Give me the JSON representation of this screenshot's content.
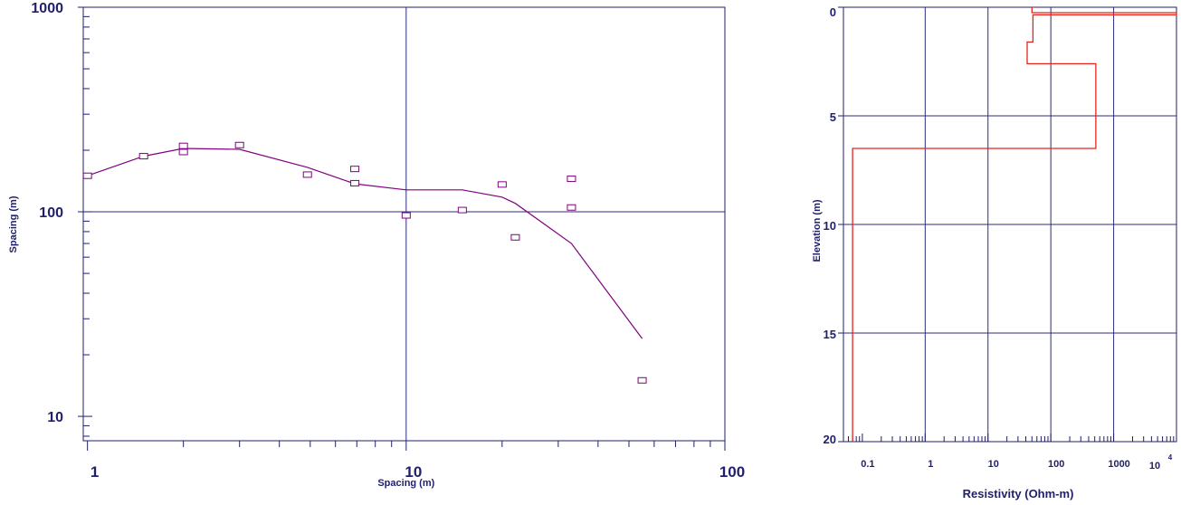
{
  "chart_data": [
    {
      "type": "scatter",
      "xlabel": "Spacing (m)",
      "ylabel": "Spacing (m)",
      "xscale": "log",
      "yscale": "log",
      "xlim": [
        0.97,
        100
      ],
      "ylim": [
        7.6,
        1000
      ],
      "x_ticks": [
        {
          "value": 1,
          "label": "1"
        },
        {
          "value": 10,
          "label": "10"
        },
        {
          "value": 100,
          "label": "100"
        }
      ],
      "y_ticks": [
        {
          "value": 10,
          "label": "10"
        },
        {
          "value": 100,
          "label": "100"
        },
        {
          "value": 1000,
          "label": "1000"
        }
      ],
      "observed": [
        {
          "x": 1.0,
          "y": 150
        },
        {
          "x": 1.5,
          "y": 187
        },
        {
          "x": 2.0,
          "y": 210
        },
        {
          "x": 2.0,
          "y": 196
        },
        {
          "x": 3.0,
          "y": 212
        },
        {
          "x": 4.9,
          "y": 152
        },
        {
          "x": 6.9,
          "y": 162
        },
        {
          "x": 6.9,
          "y": 138
        },
        {
          "x": 10.0,
          "y": 96
        },
        {
          "x": 15.0,
          "y": 102
        },
        {
          "x": 20.0,
          "y": 136
        },
        {
          "x": 22.0,
          "y": 75
        },
        {
          "x": 33.0,
          "y": 145
        },
        {
          "x": 33.0,
          "y": 105
        },
        {
          "x": 55.0,
          "y": 15
        }
      ],
      "calculated": [
        {
          "x": 1.0,
          "y": 150
        },
        {
          "x": 1.5,
          "y": 187
        },
        {
          "x": 2.0,
          "y": 204
        },
        {
          "x": 3.0,
          "y": 202
        },
        {
          "x": 4.9,
          "y": 165
        },
        {
          "x": 6.9,
          "y": 137
        },
        {
          "x": 10.0,
          "y": 128
        },
        {
          "x": 15.0,
          "y": 128
        },
        {
          "x": 20.0,
          "y": 118
        },
        {
          "x": 22.0,
          "y": 110
        },
        {
          "x": 33.0,
          "y": 70
        },
        {
          "x": 55.0,
          "y": 24
        }
      ],
      "grid": true,
      "colors": {
        "axis": "#1f1f6b",
        "grid": "#2b2b80",
        "data": "#800080"
      }
    },
    {
      "type": "line",
      "xlabel": "Resistivity (Ohm-m)",
      "ylabel": "Elevation (m)",
      "xscale": "log",
      "xlim": [
        0.05,
        10000
      ],
      "ylim": [
        20,
        0
      ],
      "x_ticks": [
        {
          "value": 0.1,
          "label": "0.1"
        },
        {
          "value": 1,
          "label": "1"
        },
        {
          "value": 10,
          "label": "10"
        },
        {
          "value": 100,
          "label": "100"
        },
        {
          "value": 1000,
          "label": "1000"
        }
      ],
      "x_tick_last": {
        "value": 10000,
        "base": "10",
        "exp": "4"
      },
      "y_ticks": [
        {
          "value": 0,
          "label": "0"
        },
        {
          "value": 5,
          "label": "5"
        },
        {
          "value": 10,
          "label": "10"
        },
        {
          "value": 15,
          "label": "15"
        },
        {
          "value": 20,
          "label": "20"
        }
      ],
      "model_layers": [
        {
          "resistivity": 50,
          "top": 0,
          "bottom": 0.25
        },
        {
          "resistivity": 10000,
          "top": 0.25,
          "bottom": 0.35
        },
        {
          "resistivity": 52,
          "top": 0.35,
          "bottom": 1.6
        },
        {
          "resistivity": 42,
          "top": 1.6,
          "bottom": 2.6
        },
        {
          "resistivity": 520,
          "top": 2.6,
          "bottom": 6.5
        },
        {
          "resistivity": 0.07,
          "top": 6.5,
          "bottom": 20
        }
      ],
      "grid": true,
      "colors": {
        "axis": "#1f1f6b",
        "grid": "#2b2b80",
        "model": "#e8221a"
      }
    }
  ]
}
